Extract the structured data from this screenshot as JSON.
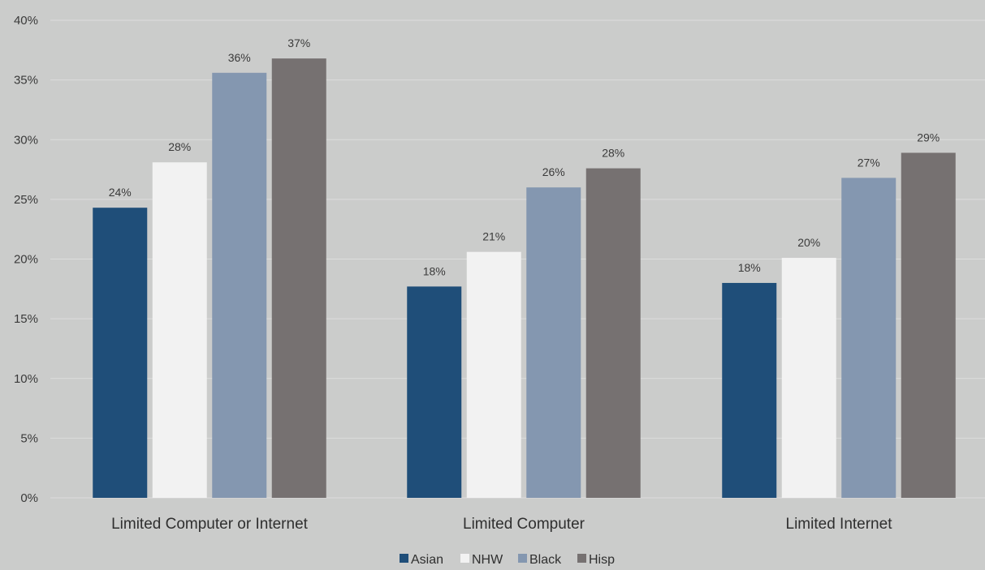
{
  "chart_data": {
    "type": "bar",
    "categories": [
      "Limited Computer or Internet",
      "Limited Computer",
      "Limited Internet"
    ],
    "series": [
      {
        "name": "Asian",
        "values": [
          24.3,
          17.7,
          18.0
        ],
        "labels": [
          "24%",
          "18%",
          "18%"
        ],
        "color": "#1f4e79"
      },
      {
        "name": "NHW",
        "values": [
          28.1,
          20.6,
          20.1
        ],
        "labels": [
          "28%",
          "21%",
          "20%"
        ],
        "color": "#f2f2f2"
      },
      {
        "name": "Black",
        "values": [
          35.6,
          26.0,
          26.8
        ],
        "labels": [
          "36%",
          "26%",
          "27%"
        ],
        "color": "#8497b0"
      },
      {
        "name": "Hisp",
        "values": [
          36.8,
          27.6,
          28.9
        ],
        "labels": [
          "37%",
          "28%",
          "29%"
        ],
        "color": "#767171"
      }
    ],
    "ylim": [
      0,
      40
    ],
    "yticks": [
      0,
      5,
      10,
      15,
      20,
      25,
      30,
      35,
      40
    ],
    "ytick_labels": [
      "0%",
      "5%",
      "10%",
      "15%",
      "20%",
      "25%",
      "30%",
      "35%",
      "40%"
    ],
    "grid": true,
    "legend_position": "bottom",
    "background": "#cbcccb"
  }
}
